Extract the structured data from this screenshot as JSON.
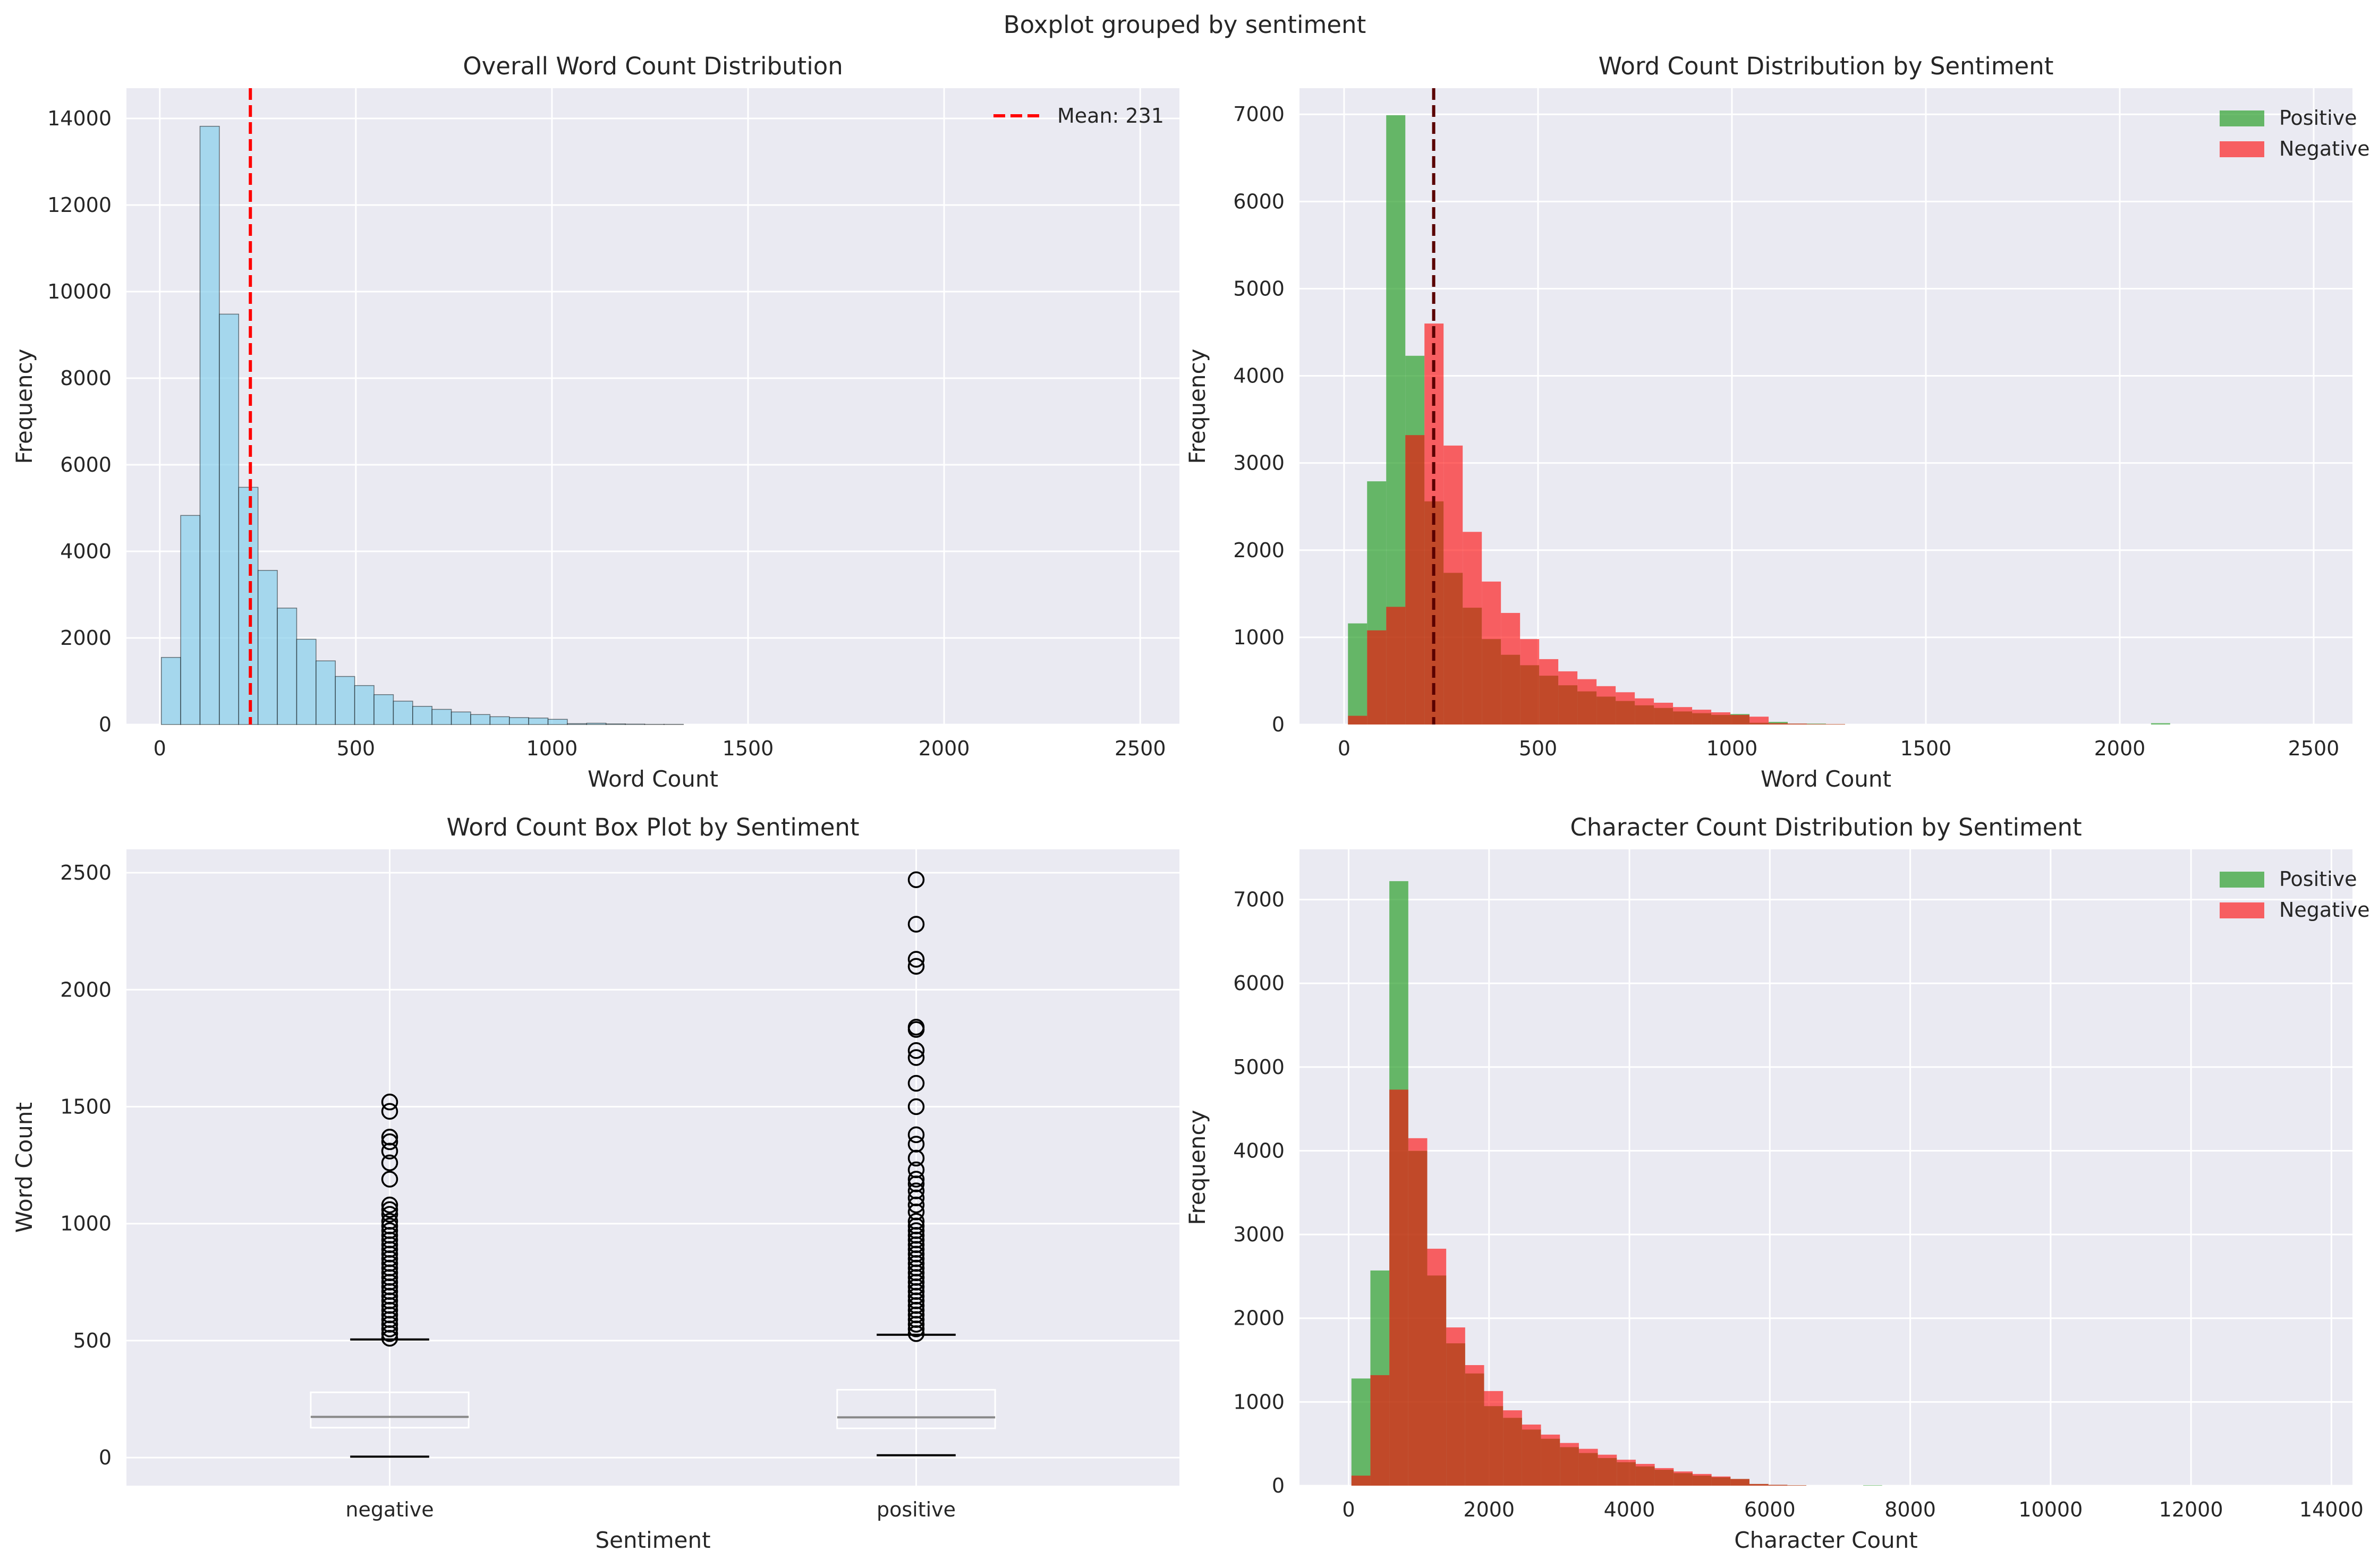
{
  "figure": {
    "suptitle": "Boxplot grouped by sentiment"
  },
  "colors": {
    "background": "#eaeaf2",
    "grid": "#ffffff",
    "overall_bar": "#87ceeb",
    "positive": "#2ca02c",
    "negative": "#ff0000",
    "mean_line": "#ff0000",
    "mean_line_dark": "#5a0000"
  },
  "chart_data": [
    {
      "id": "overall",
      "type": "bar",
      "title": "Overall Word Count Distribution",
      "xlabel": "Word Count",
      "ylabel": "Frequency",
      "xlim": [
        -85,
        2600
      ],
      "ylim": [
        0,
        14700
      ],
      "xticks": [
        0,
        500,
        1000,
        1500,
        2000,
        2500
      ],
      "yticks": [
        0,
        2000,
        4000,
        6000,
        8000,
        10000,
        12000,
        14000
      ],
      "grid": true,
      "legend_position": "top-right",
      "bin_start": 4,
      "bin_width": 49.3,
      "series": [
        {
          "name": "",
          "values": [
            1550,
            4830,
            13820,
            9480,
            5480,
            3560,
            2690,
            1970,
            1470,
            1110,
            900,
            690,
            540,
            420,
            350,
            290,
            230,
            180,
            160,
            150,
            120,
            20,
            30,
            15,
            10,
            5,
            5,
            0,
            0,
            0,
            0,
            0,
            0,
            0,
            0,
            0,
            0,
            0,
            0,
            0,
            0,
            0,
            0,
            0,
            0,
            0,
            0,
            0,
            0,
            0
          ]
        }
      ],
      "mean": {
        "value": 231,
        "label": "Mean: 231"
      }
    },
    {
      "id": "by_sentiment",
      "type": "bar",
      "title": "Word Count Distribution by Sentiment",
      "xlabel": "Word Count",
      "ylabel": "Frequency",
      "xlim": [
        -115,
        2600
      ],
      "ylim": [
        0,
        7300
      ],
      "xticks": [
        0,
        500,
        1000,
        1500,
        2000,
        2500
      ],
      "yticks": [
        0,
        1000,
        2000,
        3000,
        4000,
        5000,
        6000,
        7000
      ],
      "grid": true,
      "legend_position": "top-right",
      "bin_start": 10,
      "bin_width": 49.3,
      "series": [
        {
          "name": "Positive",
          "values": [
            1160,
            2790,
            6990,
            4230,
            2560,
            1740,
            1340,
            980,
            800,
            680,
            560,
            450,
            380,
            320,
            270,
            220,
            190,
            150,
            130,
            110,
            120,
            20,
            30,
            10,
            10,
            5,
            0,
            0,
            0,
            0,
            0,
            0,
            0,
            0,
            0,
            0,
            0,
            0,
            0,
            0,
            0,
            0,
            15,
            0,
            0,
            0,
            0,
            0,
            0,
            0
          ]
        },
        {
          "name": "Negative",
          "values": [
            100,
            1080,
            1350,
            3320,
            4600,
            3200,
            2210,
            1640,
            1280,
            980,
            750,
            610,
            520,
            440,
            370,
            300,
            250,
            200,
            170,
            140,
            110,
            90,
            15,
            10,
            5,
            5,
            0,
            0,
            0,
            0,
            0,
            0,
            0,
            0,
            0,
            0,
            0,
            0,
            0,
            0,
            0,
            0,
            0,
            0,
            0,
            0,
            0,
            0,
            0,
            0
          ]
        }
      ],
      "mean": {
        "value": 231
      }
    },
    {
      "id": "boxplot",
      "type": "box",
      "title": "Word Count Box Plot by Sentiment",
      "xlabel": "Sentiment",
      "ylabel": "Word Count",
      "ylim": [
        -120,
        2600
      ],
      "yticks": [
        0,
        500,
        1000,
        1500,
        2000,
        2500
      ],
      "categories": [
        "negative",
        "positive"
      ],
      "grid": true,
      "boxes": [
        {
          "category": "negative",
          "q1": 128,
          "median": 174,
          "q3": 279,
          "whisker_low": 4,
          "whisker_high": 505,
          "outliers": [
            510,
            530,
            550,
            570,
            590,
            610,
            630,
            650,
            670,
            690,
            710,
            730,
            750,
            770,
            790,
            810,
            830,
            850,
            870,
            890,
            910,
            930,
            950,
            970,
            990,
            1010,
            1040,
            1060,
            1080,
            1190,
            1260,
            1310,
            1350,
            1370,
            1480,
            1520
          ]
        },
        {
          "category": "positive",
          "q1": 125,
          "median": 172,
          "q3": 290,
          "whisker_low": 10,
          "whisker_high": 525,
          "outliers": [
            530,
            550,
            570,
            590,
            610,
            630,
            650,
            670,
            690,
            710,
            730,
            750,
            770,
            790,
            810,
            830,
            850,
            870,
            890,
            910,
            930,
            950,
            970,
            990,
            1010,
            1050,
            1080,
            1110,
            1140,
            1170,
            1190,
            1230,
            1280,
            1340,
            1380,
            1500,
            1600,
            1710,
            1740,
            1830,
            1840,
            2100,
            2130,
            2280,
            2470
          ]
        }
      ]
    },
    {
      "id": "char_count",
      "type": "bar",
      "title": "Character Count Distribution by Sentiment",
      "xlabel": "Character Count",
      "ylabel": "Frequency",
      "xlim": [
        -700,
        14300
      ],
      "ylim": [
        0,
        7600
      ],
      "xticks": [
        0,
        2000,
        4000,
        6000,
        8000,
        10000,
        12000,
        14000
      ],
      "yticks": [
        0,
        1000,
        2000,
        3000,
        4000,
        5000,
        6000,
        7000
      ],
      "grid": true,
      "legend_position": "top-right",
      "bin_start": 40,
      "bin_width": 270,
      "series": [
        {
          "name": "Positive",
          "values": [
            1280,
            2570,
            7220,
            4000,
            2510,
            1700,
            1340,
            950,
            810,
            670,
            560,
            460,
            390,
            330,
            280,
            230,
            190,
            150,
            120,
            100,
            80,
            20,
            10,
            5,
            0,
            0,
            0,
            5,
            0,
            0,
            0,
            0,
            0,
            0,
            0,
            0,
            0,
            0,
            0,
            0,
            0,
            0,
            0,
            0,
            0,
            0,
            0,
            0,
            0,
            0
          ]
        },
        {
          "name": "Negative",
          "values": [
            120,
            1320,
            4730,
            4150,
            2830,
            1890,
            1440,
            1130,
            900,
            730,
            610,
            510,
            440,
            370,
            310,
            260,
            210,
            170,
            140,
            110,
            80,
            20,
            10,
            5,
            0,
            0,
            0,
            0,
            0,
            0,
            0,
            0,
            0,
            0,
            0,
            0,
            0,
            0,
            0,
            0,
            0,
            0,
            0,
            0,
            0,
            0,
            0,
            0,
            0,
            0
          ]
        }
      ]
    }
  ]
}
